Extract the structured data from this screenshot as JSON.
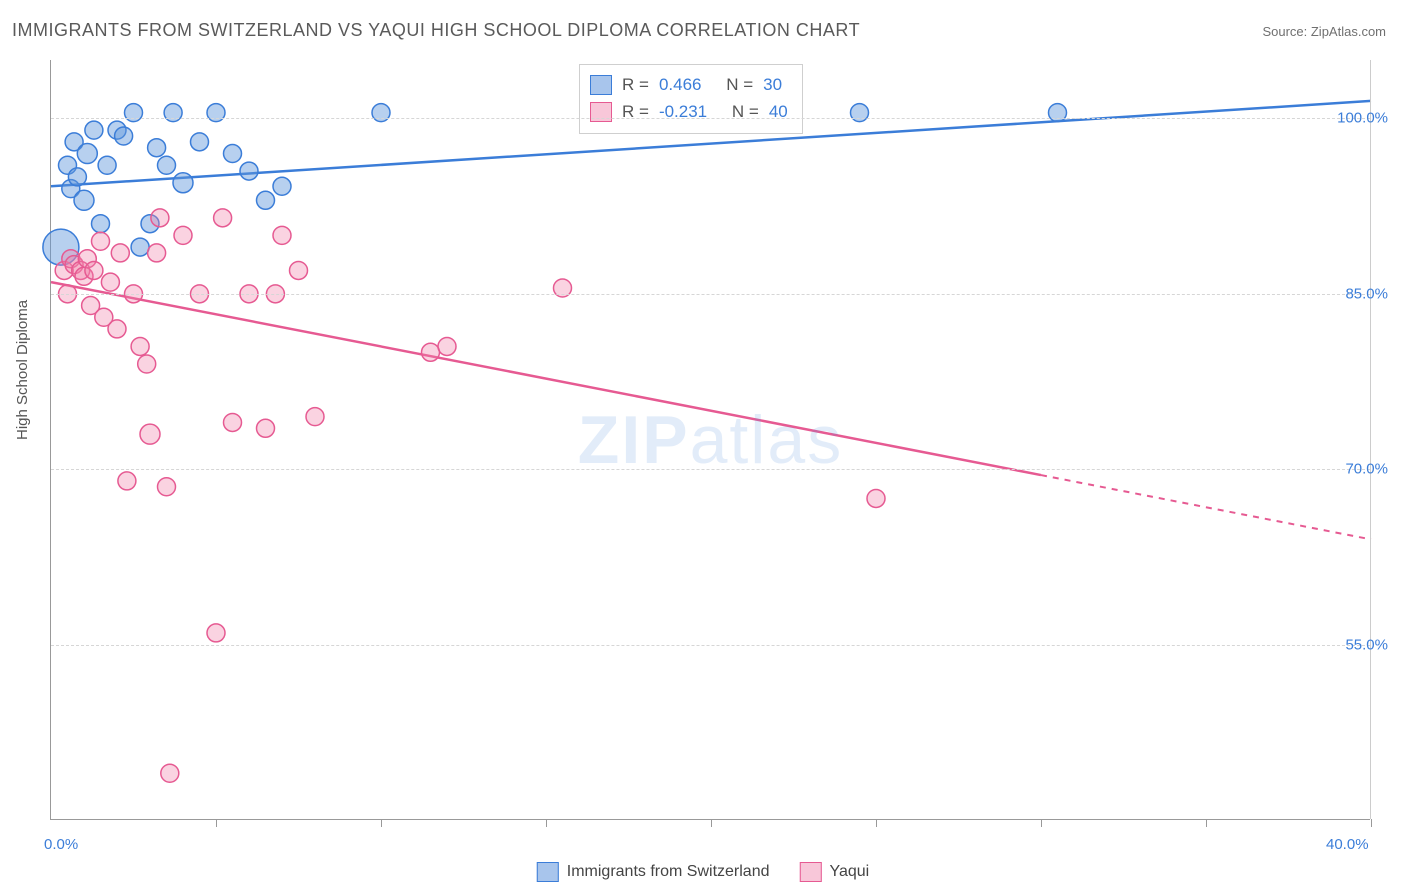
{
  "title": "IMMIGRANTS FROM SWITZERLAND VS YAQUI HIGH SCHOOL DIPLOMA CORRELATION CHART",
  "source_label": "Source: ZipAtlas.com",
  "ylabel": "High School Diploma",
  "watermark": {
    "bold": "ZIP",
    "rest": "atlas"
  },
  "legend_top": {
    "series1": {
      "r_label": "R =",
      "r_value": "0.466",
      "n_label": "N =",
      "n_value": "30"
    },
    "series2": {
      "r_label": "R =",
      "r_value": "-0.231",
      "n_label": "N =",
      "n_value": "40"
    }
  },
  "legend_bottom": {
    "series1_label": "Immigrants from Switzerland",
    "series2_label": "Yaqui"
  },
  "chart": {
    "type": "scatter-with-trendlines",
    "xlim": [
      0,
      40
    ],
    "ylim": [
      40,
      105
    ],
    "x_ticks_minor": [
      5,
      10,
      15,
      20,
      25,
      30,
      35,
      40
    ],
    "x_ticks_labeled": {
      "0": "0.0%",
      "40": "40.0%"
    },
    "y_grid": [
      55,
      70,
      85,
      100
    ],
    "y_tick_labels": {
      "55": "55.0%",
      "70": "70.0%",
      "85": "85.0%",
      "100": "100.0%"
    },
    "background_color": "#ffffff",
    "grid_color": "#d6d6d6",
    "series": [
      {
        "name": "Immigrants from Switzerland",
        "color_fill": "rgba(96,150,220,0.45)",
        "color_stroke": "#3b7dd8",
        "marker_r": 9,
        "points": [
          [
            0.3,
            89,
            18
          ],
          [
            0.5,
            96,
            9
          ],
          [
            0.6,
            94,
            9
          ],
          [
            0.7,
            98,
            9
          ],
          [
            0.8,
            95,
            9
          ],
          [
            1.0,
            93,
            10
          ],
          [
            1.1,
            97,
            10
          ],
          [
            1.3,
            99,
            9
          ],
          [
            1.5,
            91,
            9
          ],
          [
            1.7,
            96,
            9
          ],
          [
            2.0,
            99,
            9
          ],
          [
            2.2,
            98.5,
            9
          ],
          [
            2.5,
            100.5,
            9
          ],
          [
            2.7,
            89,
            9
          ],
          [
            3.0,
            91,
            9
          ],
          [
            3.2,
            97.5,
            9
          ],
          [
            3.5,
            96,
            9
          ],
          [
            3.7,
            100.5,
            9
          ],
          [
            4.0,
            94.5,
            10
          ],
          [
            4.5,
            98,
            9
          ],
          [
            5.0,
            100.5,
            9
          ],
          [
            5.5,
            97,
            9
          ],
          [
            6.0,
            95.5,
            9
          ],
          [
            6.5,
            93,
            9
          ],
          [
            7.0,
            94.2,
            9
          ],
          [
            10.0,
            100.5,
            9
          ],
          [
            24.5,
            100.5,
            9
          ],
          [
            30.5,
            100.5,
            9
          ]
        ],
        "trend": {
          "x1": 0,
          "y1": 94.2,
          "x2": 40,
          "y2": 101.5,
          "dashed_tail": false
        }
      },
      {
        "name": "Yaqui",
        "color_fill": "rgba(240,130,170,0.35)",
        "color_stroke": "#e65a92",
        "marker_r": 9,
        "points": [
          [
            0.4,
            87,
            9
          ],
          [
            0.5,
            85,
            9
          ],
          [
            0.6,
            88,
            9
          ],
          [
            0.7,
            87.5,
            9
          ],
          [
            0.9,
            87,
            9
          ],
          [
            1.0,
            86.5,
            9
          ],
          [
            1.1,
            88,
            9
          ],
          [
            1.2,
            84,
            9
          ],
          [
            1.3,
            87,
            9
          ],
          [
            1.5,
            89.5,
            9
          ],
          [
            1.6,
            83,
            9
          ],
          [
            1.8,
            86,
            9
          ],
          [
            2.0,
            82,
            9
          ],
          [
            2.1,
            88.5,
            9
          ],
          [
            2.3,
            69,
            9
          ],
          [
            2.5,
            85,
            9
          ],
          [
            2.7,
            80.5,
            9
          ],
          [
            2.9,
            79,
            9
          ],
          [
            3.0,
            73,
            10
          ],
          [
            3.2,
            88.5,
            9
          ],
          [
            3.3,
            91.5,
            9
          ],
          [
            3.5,
            68.5,
            9
          ],
          [
            3.6,
            44,
            9
          ],
          [
            4.0,
            90,
            9
          ],
          [
            4.5,
            85,
            9
          ],
          [
            5.0,
            56,
            9
          ],
          [
            5.2,
            91.5,
            9
          ],
          [
            5.5,
            74,
            9
          ],
          [
            6.0,
            85,
            9
          ],
          [
            6.5,
            73.5,
            9
          ],
          [
            6.8,
            85,
            9
          ],
          [
            7.0,
            90,
            9
          ],
          [
            7.5,
            87,
            9
          ],
          [
            8.0,
            74.5,
            9
          ],
          [
            11.5,
            80,
            9
          ],
          [
            12.0,
            80.5,
            9
          ],
          [
            15.5,
            85.5,
            9
          ],
          [
            25.0,
            67.5,
            9
          ]
        ],
        "trend": {
          "x1": 0,
          "y1": 86,
          "x2": 40,
          "y2": 64,
          "dashed_from_x": 30
        }
      }
    ]
  },
  "colors": {
    "title": "#5a5a5a",
    "axis_text": "#3b7dd8",
    "blue_stroke": "#3b7dd8",
    "pink_stroke": "#e65a92"
  }
}
